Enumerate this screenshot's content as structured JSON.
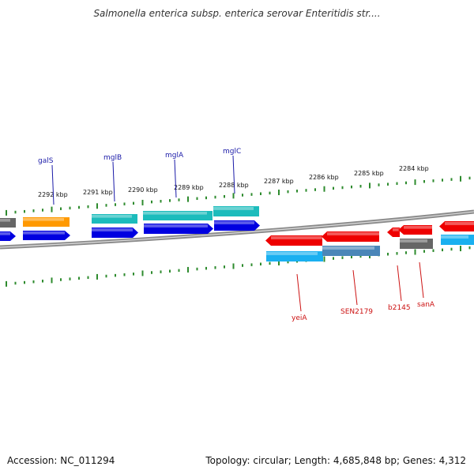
{
  "title": "Salmonella enterica subsp. enterica serovar Enteritidis str....",
  "footer": {
    "accession": "Accession: NC_011294",
    "topology": "Topology: circular; Length: 4,685,848 bp; Genes: 4,312"
  },
  "colors": {
    "tick": "#2e8b2e",
    "upper_label": "#1a1aa8",
    "lower_label": "#cc1111",
    "backbone": "#8a8a8a"
  },
  "kbp_labels": [
    "2292 kbp",
    "2291 kbp",
    "2290 kbp",
    "2289 kbp",
    "2288 kbp",
    "2287 kbp",
    "2286 kbp",
    "2285 kbp",
    "2284 kbp"
  ],
  "genes_upper": [
    "galS",
    "mglB",
    "mglA",
    "mglC"
  ],
  "genes_lower": [
    "yeiA",
    "SEN2179",
    "b2145",
    "sanA"
  ]
}
